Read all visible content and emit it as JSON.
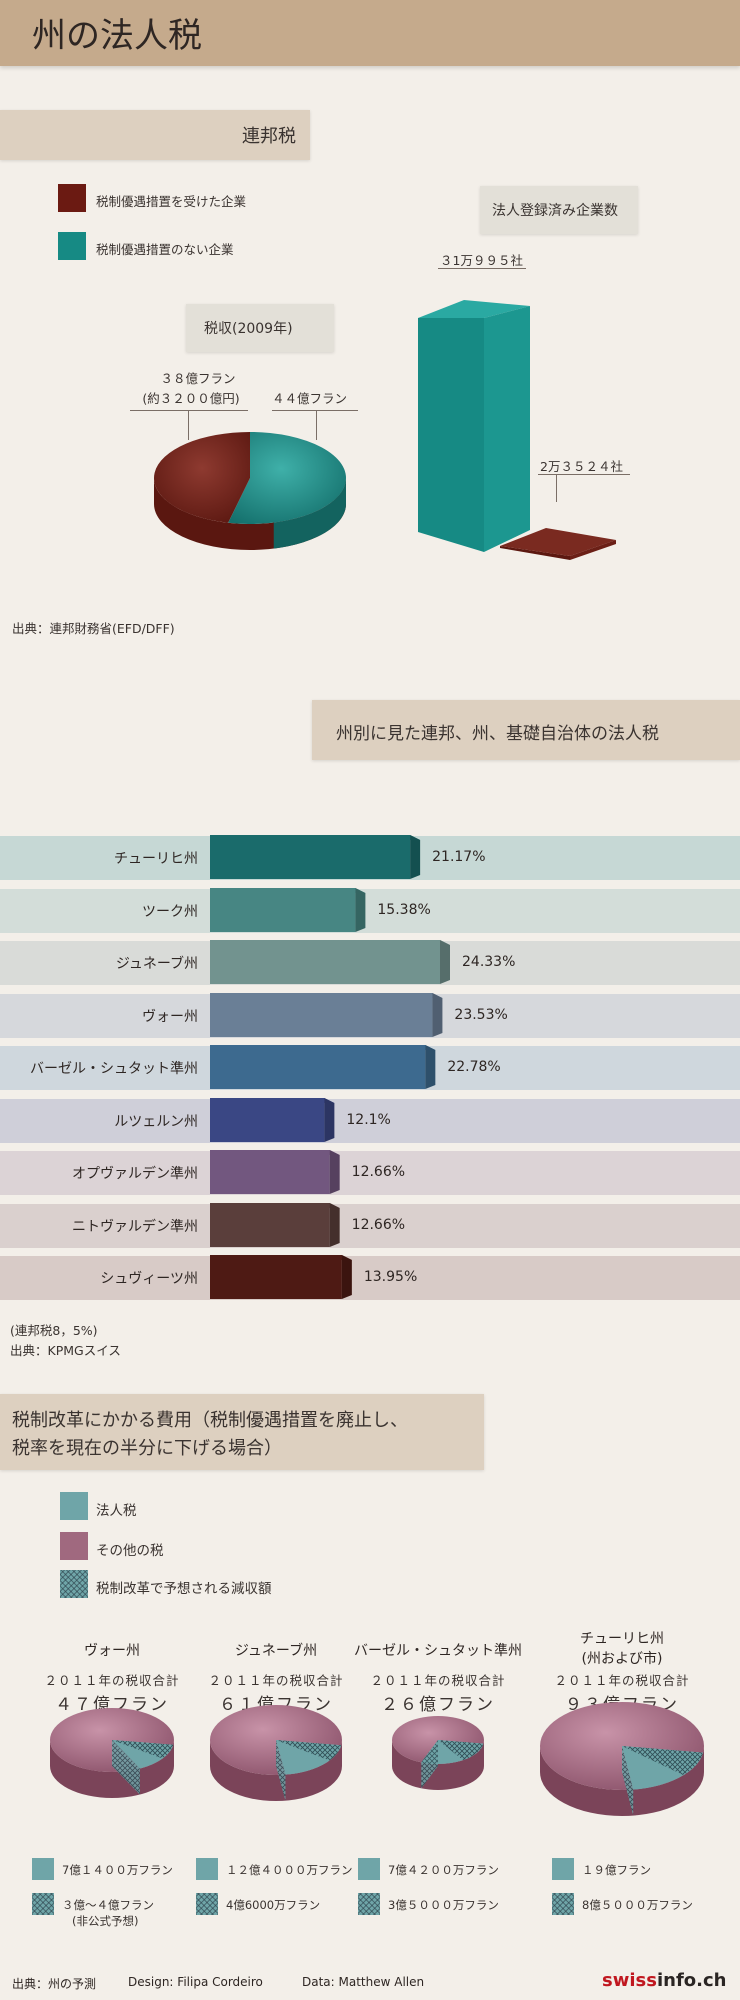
{
  "header": {
    "title": "州の法人税"
  },
  "federal": {
    "tag": "連邦税",
    "legend": [
      {
        "label": "税制優遇措置を受けた企業",
        "color": "#6b1a12"
      },
      {
        "label": "税制優遇措置のない企業",
        "color": "#168a84"
      }
    ],
    "pie_title": "税収(2009年)",
    "pie_label_privileged_1": "３８億フラン",
    "pie_label_privileged_2": "(約３２００億円)",
    "pie_label_regular": "４４億フラン",
    "bar_title": "法人登録済み企業数",
    "bar_label_regular": "３1万９９５社",
    "bar_label_privileged": "2万３５２４社",
    "source": "出典：連邦財務省(EFD/DFF)"
  },
  "cantonal": {
    "tag": "州別に見た連邦、州、基礎自治体の法人税",
    "note": "(連邦税8，5%)",
    "source": "出典：KPMGスイス"
  },
  "reform": {
    "tag_line1": "税制改革にかかる費用（税制優遇措置を廃止し、",
    "tag_line2": "税率を現在の半分に下げる場合）",
    "legend": [
      {
        "label": "法人税",
        "color": "#6fa5a8"
      },
      {
        "label": "その他の税",
        "color": "#a0697f"
      },
      {
        "label": "税制改革で予想される減収額",
        "color": "hatch"
      }
    ],
    "total_label": "２０１１年の税収合計",
    "cantons": [
      {
        "name_1": "ヴォー州",
        "name_2": "",
        "total": "４７億フラン",
        "corp": "7億１４００万フラン",
        "cut_1": "３億～４億フラン",
        "cut_2": "(非公式予想)"
      },
      {
        "name_1": "ジュネーブ州",
        "name_2": "",
        "total": "６１億フラン",
        "corp": "１２億４０００万フラン",
        "cut_1": "4億6000万フラン",
        "cut_2": ""
      },
      {
        "name_1": "バーゼル・シュタット準州",
        "name_2": "",
        "total": "２６億フラン",
        "corp": "7億４２００万フラン",
        "cut_1": "3億５０００万フラン",
        "cut_2": ""
      },
      {
        "name_1": "チューリヒ州",
        "name_2": "(州および市)",
        "total": "９３億フラン",
        "corp": "１９億フラン",
        "cut_1": "8億５０００万フラン",
        "cut_2": ""
      }
    ]
  },
  "footer": {
    "source": "出典：州の予測",
    "design": "Design: Filipa Cordeiro",
    "data": "Data: Matthew Allen",
    "brand_a": "swiss",
    "brand_b": "info.ch"
  },
  "chart_data": [
    {
      "type": "pie",
      "title": "税収(2009年)",
      "unit": "億フラン",
      "labels": [
        "税制優遇措置を受けた企業",
        "税制優遇措置のない企業"
      ],
      "values": [
        38,
        44
      ],
      "colors": [
        "#6b1a12",
        "#168a84"
      ]
    },
    {
      "type": "bar",
      "title": "法人登録済み企業数",
      "categories": [
        "税制優遇措置のない企業",
        "税制優遇措置を受けた企業"
      ],
      "values": [
        310995,
        23524
      ],
      "colors": [
        "#168a84",
        "#6b1a12"
      ]
    },
    {
      "type": "bar",
      "orientation": "horizontal",
      "title": "州別に見た連邦、州、基礎自治体の法人税",
      "xlim": [
        0,
        30
      ],
      "categories": [
        "チューリヒ州",
        "ツーク州",
        "ジュネーブ州",
        "ヴォー州",
        "バーゼル・シュタット準州",
        "ルツェルン州",
        "オプヴァルデン準州",
        "ニトヴァルデン準州",
        "シュヴィーツ州"
      ],
      "values": [
        21.17,
        15.38,
        24.33,
        23.53,
        22.78,
        12.1,
        12.66,
        12.66,
        13.95
      ],
      "value_labels": [
        "21.17%",
        "15.38%",
        "24.33%",
        "23.53%",
        "22.78%",
        "12.1%",
        "12.66%",
        "12.66%",
        "13.95%"
      ],
      "bar_colors": [
        "#1a6b6b",
        "#478683",
        "#72938f",
        "#6a7f96",
        "#3d6a8f",
        "#3a4784",
        "#72577f",
        "#5a3e3b",
        "#4e1a14"
      ],
      "row_colors": [
        "#c6d8d5",
        "#d3ddd9",
        "#d9dbd8",
        "#d6d8dc",
        "#cfd7dd",
        "#cfcfd9",
        "#dcd3d6",
        "#dad0ce",
        "#d8cbc7"
      ]
    },
    {
      "type": "pie",
      "title": "税制改革にかかる費用",
      "unit": "億フラン",
      "series": [
        {
          "name": "ヴォー州",
          "total": 47,
          "corporate": 7.14,
          "cut_min": 3,
          "cut_max": 4
        },
        {
          "name": "ジュネーブ州",
          "total": 61,
          "corporate": 12.4,
          "cut": 4.6
        },
        {
          "name": "バーゼル・シュタット準州",
          "total": 26,
          "corporate": 7.42,
          "cut": 3.5
        },
        {
          "name": "チューリヒ州",
          "total": 93,
          "corporate": 19,
          "cut": 8.5
        }
      ]
    }
  ]
}
